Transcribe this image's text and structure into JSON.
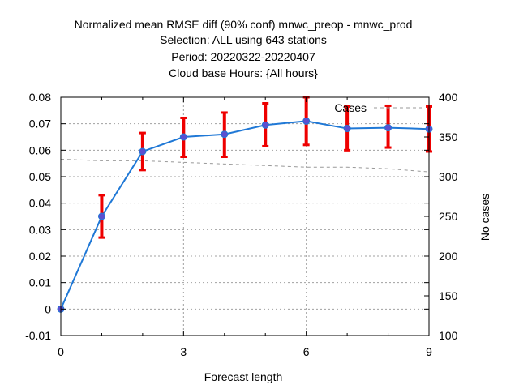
{
  "chart_data": {
    "type": "line",
    "title_lines": [
      "Normalized mean RMSE diff (90% conf) mnwc_preop - mnwc_prod",
      "Selection: ALL using   643 stations",
      "Period: 20220322-20220407",
      "Cloud base   Hours: {All hours}"
    ],
    "xlabel": "Forecast length",
    "ylabel": "",
    "y2label": "No cases",
    "xlim": [
      0,
      9
    ],
    "ylim": [
      -0.01,
      0.08
    ],
    "y2lim": [
      100,
      400
    ],
    "xticks": [
      0,
      3,
      6,
      9
    ],
    "yticks": [
      -0.01,
      0,
      0.01,
      0.02,
      0.03,
      0.04,
      0.05,
      0.06,
      0.07,
      0.08
    ],
    "ytick_labels": [
      "-0.01",
      "0",
      "0.01",
      "0.02",
      "0.03",
      "0.04",
      "0.05",
      "0.06",
      "0.07",
      "0.08"
    ],
    "y2ticks": [
      100,
      150,
      200,
      250,
      300,
      350,
      400
    ],
    "grid": true,
    "legend_position": "top-right",
    "series": [
      {
        "color": "#1f78d6",
        "marker_color": "#5b4fd0",
        "axis": "left",
        "x": [
          0,
          1,
          2,
          3,
          4,
          5,
          6,
          7,
          8,
          9
        ],
        "values": [
          0.0,
          0.035,
          0.0595,
          0.065,
          0.066,
          0.0695,
          0.071,
          0.0682,
          0.0685,
          0.068
        ],
        "error_low": [
          0.0,
          0.027,
          0.0525,
          0.0575,
          0.0575,
          0.0615,
          0.062,
          0.06,
          0.061,
          0.0595
        ],
        "error_high": [
          0.0,
          0.043,
          0.0665,
          0.0722,
          0.0742,
          0.0777,
          0.08,
          0.0765,
          0.0768,
          0.0765
        ],
        "error_color": "#ee0000"
      },
      {
        "name": "Cases",
        "color": "#999999",
        "axis": "right",
        "style": "dashed",
        "x": [
          0,
          1,
          2,
          3,
          4,
          5,
          6,
          7,
          8,
          9
        ],
        "values": [
          322,
          320,
          320,
          318,
          316,
          314,
          312,
          312,
          310,
          306
        ]
      }
    ]
  }
}
